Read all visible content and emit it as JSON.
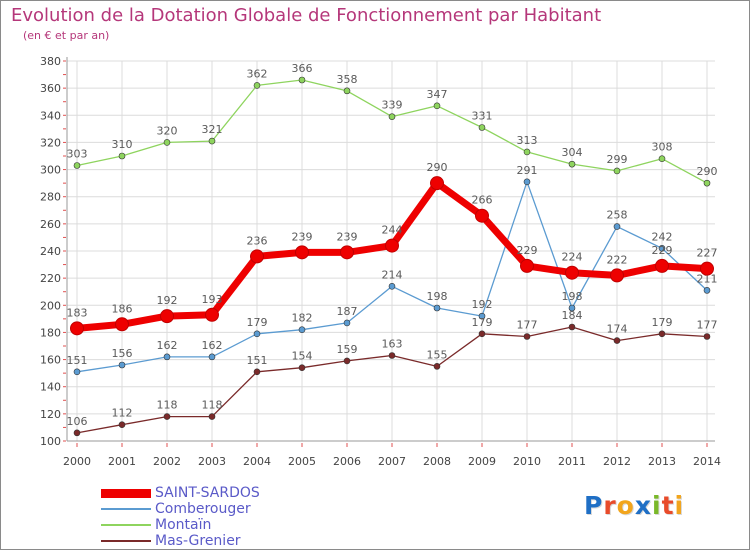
{
  "title": "Evolution de la Dotation Globale de Fonctionnement par Habitant",
  "subtitle": "(en € et par an)",
  "logo": {
    "text": "Proxiti",
    "letters": [
      {
        "ch": "P",
        "color": "#1f6fc5"
      },
      {
        "ch": "r",
        "color": "#e84b2a"
      },
      {
        "ch": "o",
        "color": "#f2a51c"
      },
      {
        "ch": "x",
        "color": "#1f6fc5"
      },
      {
        "ch": "i",
        "color": "#7ab829"
      },
      {
        "ch": "t",
        "color": "#e84b2a"
      },
      {
        "ch": "i",
        "color": "#f2a51c"
      }
    ]
  },
  "chart_data": {
    "type": "line",
    "title": "Evolution de la Dotation Globale de Fonctionnement par Habitant",
    "ylabel": "(en € et par an)",
    "xlabel": "",
    "x": [
      2000,
      2001,
      2002,
      2003,
      2004,
      2005,
      2006,
      2007,
      2008,
      2009,
      2010,
      2011,
      2012,
      2013,
      2014
    ],
    "ylim": [
      100,
      380
    ],
    "yticks": [
      100,
      120,
      140,
      160,
      180,
      200,
      220,
      240,
      260,
      280,
      300,
      320,
      340,
      360,
      380
    ],
    "grid": true,
    "series": [
      {
        "key": "montain",
        "name": "Montaïn",
        "color": "#8ed45e",
        "labelColor": "#5a5a5a",
        "values": [
          303,
          310,
          320,
          321,
          362,
          366,
          358,
          339,
          347,
          331,
          313,
          304,
          299,
          308,
          290
        ]
      },
      {
        "key": "comberouger",
        "name": "Comberouger",
        "color": "#5b9bd1",
        "labelColor": "#5a5a5a",
        "values": [
          151,
          156,
          162,
          162,
          179,
          182,
          187,
          214,
          198,
          192,
          291,
          198,
          258,
          242,
          211
        ]
      },
      {
        "key": "mas-grenier",
        "name": "Mas-Grenier",
        "color": "#7a2a2a",
        "labelColor": "#5a5a5a",
        "values": [
          106,
          112,
          118,
          118,
          151,
          154,
          159,
          163,
          155,
          179,
          177,
          184,
          174,
          179,
          177
        ]
      },
      {
        "key": "saint-sardos",
        "name": "SAINT-SARDOS",
        "color": "#ee0000",
        "labelColor": "#5a5a5a",
        "main": true,
        "values": [
          183,
          186,
          192,
          193,
          236,
          239,
          239,
          244,
          290,
          266,
          229,
          224,
          222,
          229,
          227
        ]
      }
    ],
    "legend": [
      {
        "name": "SAINT-SARDOS",
        "color": "#ee0000",
        "textColor": "#5a5ac8"
      },
      {
        "name": "Comberouger",
        "color": "#5b9bd1",
        "textColor": "#5a5ac8"
      },
      {
        "name": "Montaïn",
        "color": "#8ed45e",
        "textColor": "#5a5ac8"
      },
      {
        "name": "Mas-Grenier",
        "color": "#7a2a2a",
        "textColor": "#5a5ac8"
      }
    ]
  }
}
